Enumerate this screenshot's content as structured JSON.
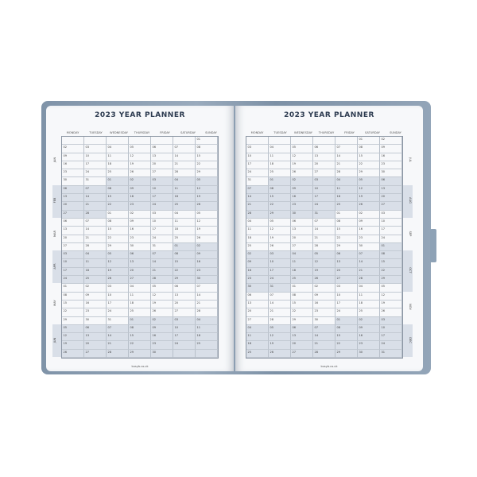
{
  "title": "2023 YEAR PLANNER",
  "weekdays": [
    "MONDAY",
    "TUESDAY",
    "WEDNESDAY",
    "THURSDAY",
    "FRIDAY",
    "SATURDAY",
    "SUNDAY"
  ],
  "footer": "busyb.co.uk",
  "colors": {
    "cover": "#8a9db1",
    "shade": "#d9dfe8",
    "title": "#2c3a4f"
  },
  "left_page": {
    "months": [
      "JAN",
      "FEB",
      "MAR",
      "APR",
      "MAY",
      "JUN"
    ],
    "weeks": [
      [
        "",
        "",
        "",
        "",
        "",
        "",
        "01"
      ],
      [
        "02",
        "03",
        "04",
        "05",
        "06",
        "07",
        "08"
      ],
      [
        "09",
        "10",
        "11",
        "12",
        "13",
        "14",
        "15"
      ],
      [
        "16",
        "17",
        "18",
        "19",
        "20",
        "21",
        "22"
      ],
      [
        "23",
        "24",
        "25",
        "26",
        "27",
        "28",
        "29"
      ],
      [
        "30",
        "31",
        "01",
        "02",
        "03",
        "04",
        "05"
      ],
      [
        "06",
        "07",
        "08",
        "09",
        "10",
        "11",
        "12"
      ],
      [
        "13",
        "14",
        "15",
        "16",
        "17",
        "18",
        "19"
      ],
      [
        "20",
        "21",
        "22",
        "23",
        "24",
        "25",
        "26"
      ],
      [
        "27",
        "28",
        "01",
        "02",
        "03",
        "04",
        "05"
      ],
      [
        "06",
        "07",
        "08",
        "09",
        "10",
        "11",
        "12"
      ],
      [
        "13",
        "14",
        "15",
        "16",
        "17",
        "18",
        "19"
      ],
      [
        "20",
        "21",
        "22",
        "23",
        "24",
        "25",
        "26"
      ],
      [
        "27",
        "28",
        "29",
        "30",
        "31",
        "01",
        "02"
      ],
      [
        "03",
        "04",
        "05",
        "06",
        "07",
        "08",
        "09"
      ],
      [
        "10",
        "11",
        "12",
        "13",
        "14",
        "15",
        "16"
      ],
      [
        "17",
        "18",
        "19",
        "20",
        "21",
        "22",
        "23"
      ],
      [
        "24",
        "25",
        "26",
        "27",
        "28",
        "29",
        "30"
      ],
      [
        "01",
        "02",
        "03",
        "04",
        "05",
        "06",
        "07"
      ],
      [
        "08",
        "09",
        "10",
        "11",
        "12",
        "13",
        "14"
      ],
      [
        "15",
        "16",
        "17",
        "18",
        "19",
        "20",
        "21"
      ],
      [
        "22",
        "23",
        "24",
        "25",
        "26",
        "27",
        "28"
      ],
      [
        "29",
        "30",
        "31",
        "01",
        "02",
        "03",
        "04"
      ],
      [
        "05",
        "06",
        "07",
        "08",
        "09",
        "10",
        "11"
      ],
      [
        "12",
        "13",
        "14",
        "15",
        "16",
        "17",
        "18"
      ],
      [
        "19",
        "20",
        "21",
        "22",
        "23",
        "24",
        "25"
      ],
      [
        "26",
        "27",
        "28",
        "29",
        "30",
        "",
        ""
      ]
    ]
  },
  "right_page": {
    "months": [
      "JUL",
      "AUG",
      "SEP",
      "OCT",
      "NOV",
      "DEC"
    ],
    "weeks": [
      [
        "",
        "",
        "",
        "",
        "",
        "01",
        "02"
      ],
      [
        "03",
        "04",
        "05",
        "06",
        "07",
        "08",
        "09"
      ],
      [
        "10",
        "11",
        "12",
        "13",
        "14",
        "15",
        "16"
      ],
      [
        "17",
        "18",
        "19",
        "20",
        "21",
        "22",
        "23"
      ],
      [
        "24",
        "25",
        "26",
        "27",
        "28",
        "29",
        "30"
      ],
      [
        "31",
        "01",
        "02",
        "03",
        "04",
        "05",
        "06"
      ],
      [
        "07",
        "08",
        "09",
        "10",
        "11",
        "12",
        "13"
      ],
      [
        "14",
        "15",
        "16",
        "17",
        "18",
        "19",
        "20"
      ],
      [
        "21",
        "22",
        "23",
        "24",
        "25",
        "26",
        "27"
      ],
      [
        "28",
        "29",
        "30",
        "31",
        "01",
        "02",
        "03"
      ],
      [
        "04",
        "05",
        "06",
        "07",
        "08",
        "09",
        "10"
      ],
      [
        "11",
        "12",
        "13",
        "14",
        "15",
        "16",
        "17"
      ],
      [
        "18",
        "19",
        "20",
        "21",
        "22",
        "23",
        "24"
      ],
      [
        "25",
        "26",
        "27",
        "28",
        "29",
        "30",
        "01"
      ],
      [
        "02",
        "03",
        "04",
        "05",
        "06",
        "07",
        "08"
      ],
      [
        "09",
        "10",
        "11",
        "12",
        "13",
        "14",
        "15"
      ],
      [
        "16",
        "17",
        "18",
        "19",
        "20",
        "21",
        "22"
      ],
      [
        "23",
        "24",
        "25",
        "26",
        "27",
        "28",
        "29"
      ],
      [
        "30",
        "31",
        "01",
        "02",
        "03",
        "04",
        "05"
      ],
      [
        "06",
        "07",
        "08",
        "09",
        "10",
        "11",
        "12"
      ],
      [
        "13",
        "14",
        "15",
        "16",
        "17",
        "18",
        "19"
      ],
      [
        "20",
        "21",
        "22",
        "23",
        "24",
        "25",
        "26"
      ],
      [
        "27",
        "28",
        "29",
        "30",
        "01",
        "02",
        "03"
      ],
      [
        "04",
        "05",
        "06",
        "07",
        "08",
        "09",
        "10"
      ],
      [
        "11",
        "12",
        "13",
        "14",
        "15",
        "16",
        "17"
      ],
      [
        "18",
        "19",
        "20",
        "21",
        "22",
        "23",
        "24"
      ],
      [
        "25",
        "26",
        "27",
        "28",
        "29",
        "30",
        "31"
      ]
    ]
  }
}
